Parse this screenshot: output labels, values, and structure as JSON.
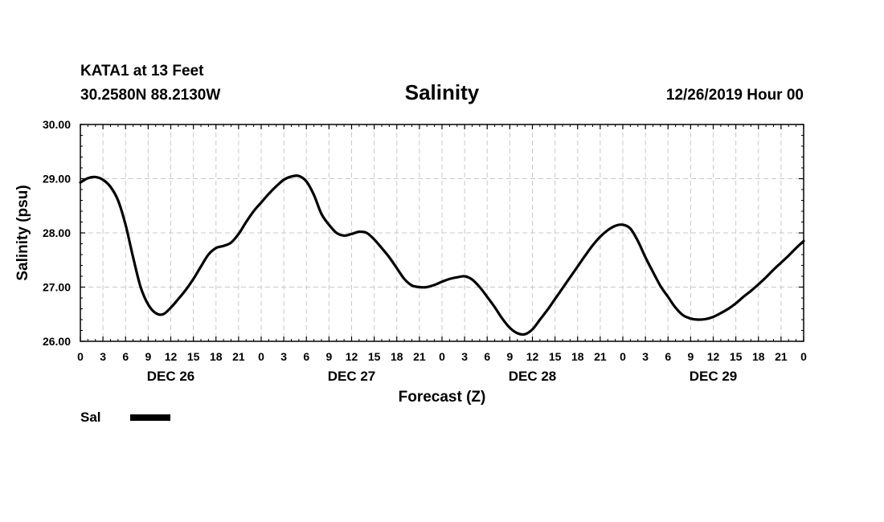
{
  "header": {
    "station": "KATA1 at 13 Feet",
    "coords": "30.2580N 88.2130W",
    "title": "Salinity",
    "datetime": "12/26/2019 Hour 00"
  },
  "chart_data": {
    "type": "line",
    "title": "Salinity",
    "xlabel": "Forecast (Z)",
    "ylabel": "Salinity (psu)",
    "xlim": [
      0,
      96
    ],
    "ylim": [
      26.0,
      30.0
    ],
    "grid": true,
    "yticks": [
      26.0,
      27.0,
      28.0,
      29.0,
      30.0
    ],
    "ytick_labels": [
      "26.00",
      "27.00",
      "28.00",
      "29.00",
      "30.00"
    ],
    "xtick_hours": [
      0,
      3,
      6,
      9,
      12,
      15,
      18,
      21,
      24,
      27,
      30,
      33,
      36,
      39,
      42,
      45,
      48,
      51,
      54,
      57,
      60,
      63,
      66,
      69,
      72,
      75,
      78,
      81,
      84,
      87,
      90,
      93,
      96
    ],
    "xtick_labels": [
      "0",
      "3",
      "6",
      "9",
      "12",
      "15",
      "18",
      "21",
      "0",
      "3",
      "6",
      "9",
      "12",
      "15",
      "18",
      "21",
      "0",
      "3",
      "6",
      "9",
      "12",
      "15",
      "18",
      "21",
      "0",
      "3",
      "6",
      "9",
      "12",
      "15",
      "18",
      "21",
      "0"
    ],
    "day_labels": [
      {
        "hour": 12,
        "label": "DEC 26"
      },
      {
        "hour": 36,
        "label": "DEC 27"
      },
      {
        "hour": 60,
        "label": "DEC 28"
      },
      {
        "hour": 84,
        "label": "DEC 29"
      }
    ],
    "series": [
      {
        "name": "Sal",
        "x": [
          0,
          1,
          2,
          3,
          4,
          5,
          6,
          7,
          8,
          9,
          10,
          11,
          12,
          13,
          14,
          15,
          16,
          17,
          18,
          19,
          20,
          21,
          22,
          23,
          24,
          25,
          26,
          27,
          28,
          29,
          30,
          31,
          32,
          33,
          34,
          35,
          36,
          37,
          38,
          39,
          40,
          41,
          42,
          43,
          44,
          45,
          46,
          47,
          48,
          49,
          50,
          51,
          52,
          53,
          54,
          55,
          56,
          57,
          58,
          59,
          60,
          61,
          62,
          63,
          64,
          65,
          66,
          67,
          68,
          69,
          70,
          71,
          72,
          73,
          74,
          75,
          76,
          77,
          78,
          79,
          80,
          81,
          82,
          83,
          84,
          85,
          86,
          87,
          88,
          89,
          90,
          91,
          92,
          93,
          94,
          95,
          96
        ],
        "values": [
          28.93,
          29.01,
          29.03,
          28.98,
          28.85,
          28.6,
          28.15,
          27.55,
          27.0,
          26.68,
          26.52,
          26.5,
          26.62,
          26.78,
          26.95,
          27.15,
          27.38,
          27.6,
          27.72,
          27.76,
          27.82,
          27.98,
          28.2,
          28.4,
          28.56,
          28.72,
          28.86,
          28.98,
          29.04,
          29.05,
          28.95,
          28.7,
          28.35,
          28.15,
          28.0,
          27.95,
          27.98,
          28.02,
          28.0,
          27.88,
          27.72,
          27.55,
          27.35,
          27.15,
          27.03,
          27.0,
          27.0,
          27.04,
          27.1,
          27.15,
          27.18,
          27.2,
          27.14,
          27.0,
          26.82,
          26.63,
          26.42,
          26.25,
          26.15,
          26.13,
          26.22,
          26.4,
          26.58,
          26.78,
          26.98,
          27.18,
          27.38,
          27.58,
          27.77,
          27.93,
          28.05,
          28.13,
          28.15,
          28.08,
          27.85,
          27.55,
          27.28,
          27.02,
          26.82,
          26.62,
          26.48,
          26.42,
          26.4,
          26.41,
          26.45,
          26.52,
          26.6,
          26.7,
          26.82,
          26.93,
          27.05,
          27.18,
          27.32,
          27.45,
          27.58,
          27.72,
          27.85
        ]
      }
    ],
    "legend": [
      {
        "label": "Sal",
        "color": "#000000"
      }
    ],
    "legend_position": "bottom-left"
  }
}
